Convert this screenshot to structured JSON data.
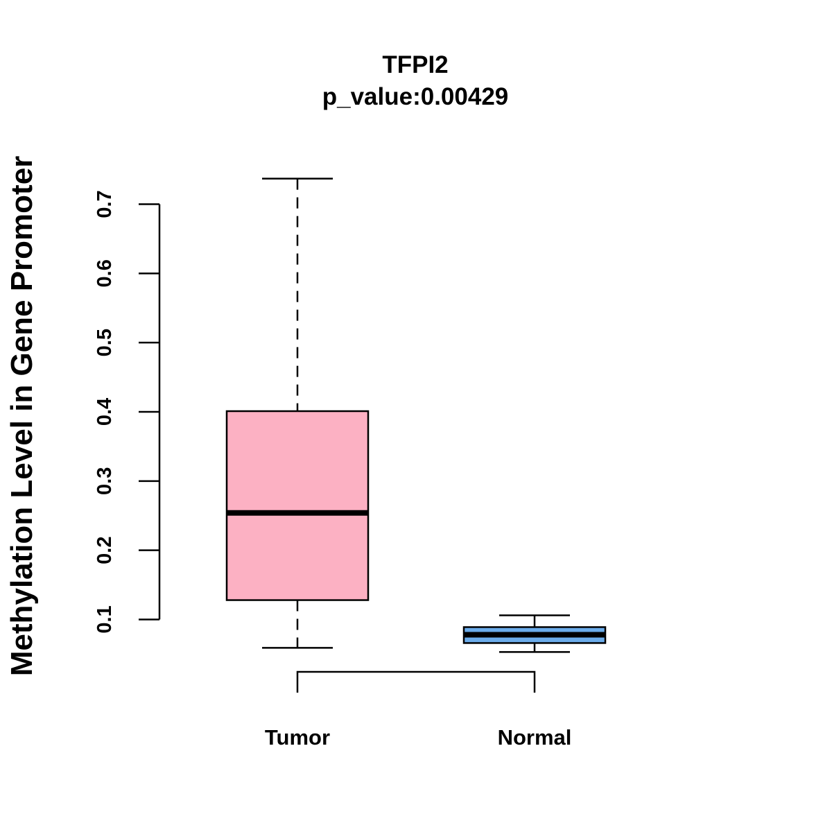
{
  "chart_data": {
    "type": "box",
    "title": "TFPI2",
    "subtitle": "p_value:0.00429",
    "xlabel": "",
    "ylabel": "Methylation Level in Gene Promoter",
    "ylim": [
      0.1,
      0.7
    ],
    "yticks": [
      0.1,
      0.2,
      0.3,
      0.4,
      0.5,
      0.6,
      0.7
    ],
    "ytick_labels": [
      "0.1",
      "0.2",
      "0.3",
      "0.4",
      "0.5",
      "0.6",
      "0.7"
    ],
    "categories": [
      "Tumor",
      "Normal"
    ],
    "boxes": [
      {
        "name": "Tumor",
        "min": 0.059,
        "q1": 0.128,
        "median": 0.254,
        "q3": 0.401,
        "max": 0.737,
        "color": "#FCB1C3"
      },
      {
        "name": "Normal",
        "min": 0.053,
        "q1": 0.066,
        "median": 0.078,
        "q3": 0.089,
        "max": 0.106,
        "color": "#6CACEA"
      }
    ],
    "comparison_bracket": [
      "Tumor",
      "Normal"
    ],
    "grid": false
  }
}
